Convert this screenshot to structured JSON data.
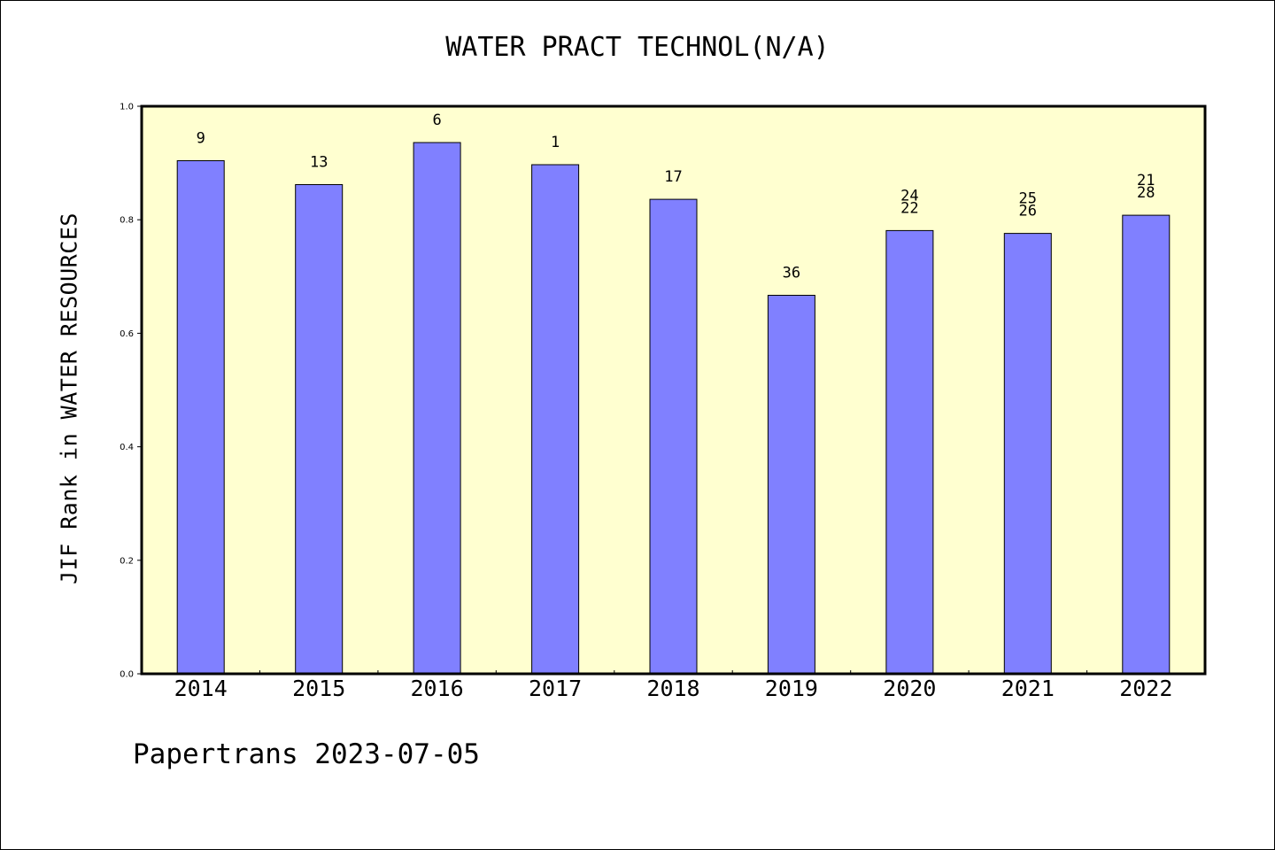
{
  "chart_data": {
    "type": "bar",
    "title": "WATER PRACT TECHNOL(N/A)",
    "ylabel": "JIF Rank in WATER RESOURCES",
    "xlabel": "",
    "categories": [
      "2014",
      "2015",
      "2016",
      "2017",
      "2018",
      "2019",
      "2020",
      "2021",
      "2022"
    ],
    "values": [
      0.904,
      0.862,
      0.936,
      0.897,
      0.836,
      0.667,
      0.781,
      0.776,
      0.808
    ],
    "bar_labels": [
      [
        "9"
      ],
      [
        "13"
      ],
      [
        "6"
      ],
      [
        "1"
      ],
      [
        "17"
      ],
      [
        "36"
      ],
      [
        "24",
        "22"
      ],
      [
        "25",
        "26"
      ],
      [
        "21",
        "28"
      ]
    ],
    "y_ticks": [
      "0.0",
      "0.2",
      "0.4",
      "0.6",
      "0.8",
      "1.0"
    ],
    "ylim": [
      0,
      1.0
    ],
    "grid": false,
    "colors": {
      "bar_fill": "#8080ff",
      "plot_background": "#ffffd0",
      "axis": "#000000"
    }
  },
  "footer": {
    "credit": "Papertrans 2023-07-05"
  }
}
